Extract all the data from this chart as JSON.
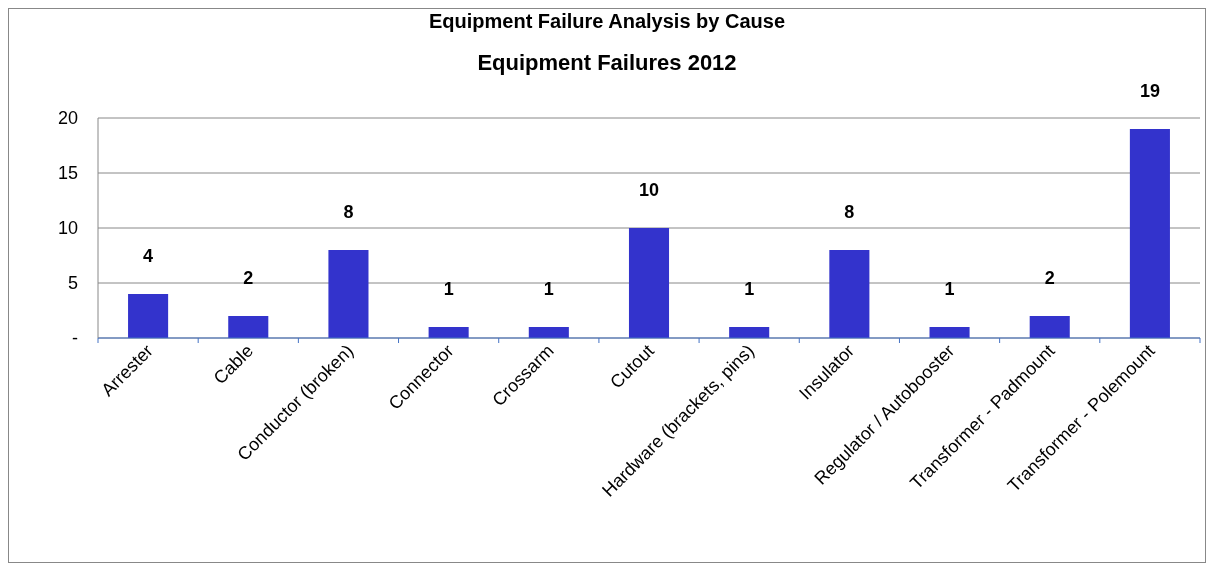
{
  "chart_data": {
    "type": "bar",
    "title": "Equipment Failure Analysis by Cause",
    "subtitle": "Equipment Failures 2012",
    "categories": [
      "Arrester",
      "Cable",
      "Conductor (broken)",
      "Connector",
      "Crossarm",
      "Cutout",
      "Hardware (brackets, pins)",
      "Insulator",
      "Regulator / Autobooster",
      "Transformer - Padmount",
      "Transformer - Polemount"
    ],
    "values": [
      4,
      2,
      8,
      1,
      1,
      10,
      1,
      8,
      1,
      2,
      19
    ],
    "color": "#3333cc",
    "ylim": [
      0,
      20
    ],
    "yticks": [
      {
        "value": 0,
        "label": "-"
      },
      5,
      10,
      15,
      20
    ],
    "grid": "y",
    "data_labels": true
  }
}
